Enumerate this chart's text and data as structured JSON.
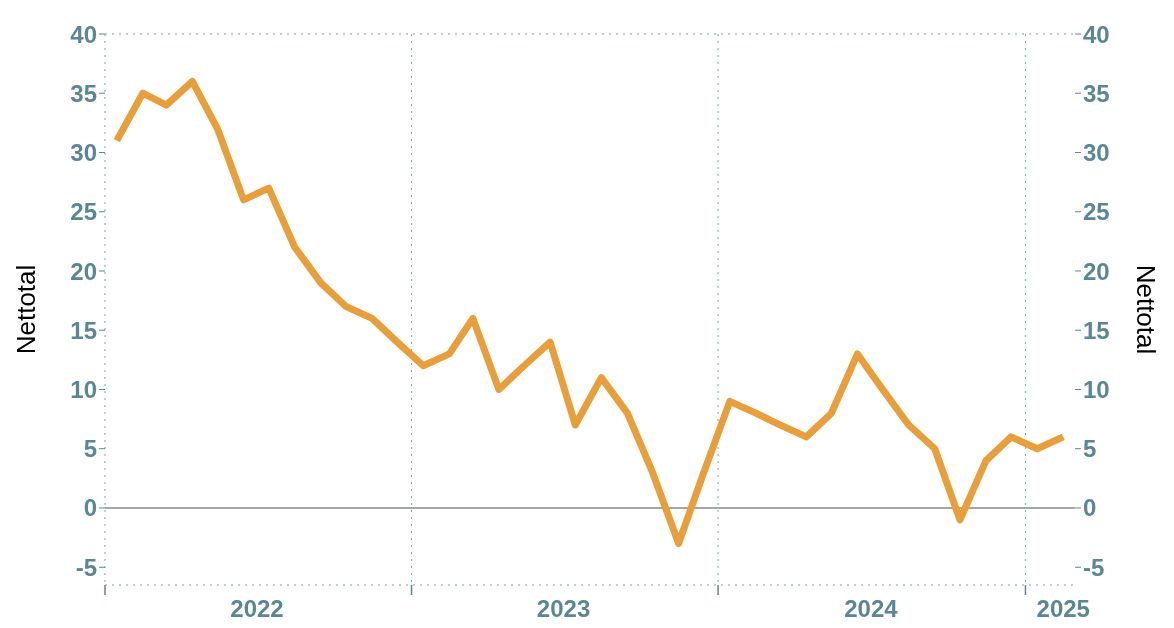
{
  "chart_data": {
    "type": "line",
    "ylabel": "Nettotal",
    "y2label": "Nettotal",
    "x": [
      "2022-01-15",
      "2022-02-15",
      "2022-03-15",
      "2022-04-15",
      "2022-05-15",
      "2022-06-15",
      "2022-07-15",
      "2022-08-15",
      "2022-09-15",
      "2022-10-15",
      "2022-11-15",
      "2022-12-15",
      "2023-01-15",
      "2023-02-15",
      "2023-03-15",
      "2023-04-15",
      "2023-05-15",
      "2023-06-15",
      "2023-07-15",
      "2023-08-15",
      "2023-09-15",
      "2023-10-15",
      "2023-11-15",
      "2023-12-15",
      "2024-01-15",
      "2024-02-15",
      "2024-03-15",
      "2024-04-15",
      "2024-05-15",
      "2024-06-15",
      "2024-07-15",
      "2024-08-15",
      "2024-09-15",
      "2024-10-15",
      "2024-11-15",
      "2024-12-15",
      "2025-01-15",
      "2025-02-15"
    ],
    "series": [
      {
        "color": "#e89e3a",
        "values": [
          31,
          35,
          34,
          36,
          32,
          26,
          27,
          22,
          19,
          17,
          16,
          14,
          12,
          13,
          16,
          10,
          12,
          14,
          7,
          11,
          8,
          3,
          -3,
          3,
          9,
          8,
          7,
          6,
          8,
          13,
          10,
          7,
          5,
          -1,
          4,
          6,
          5,
          6
        ]
      }
    ],
    "xlim": [
      "2022-01-01",
      "2025-03-01"
    ],
    "xticks": [
      {
        "value": "2022-01-01",
        "label": null
      },
      {
        "value": "2022-07-01",
        "label": "2022"
      },
      {
        "value": "2023-01-01",
        "label": null
      },
      {
        "value": "2023-07-01",
        "label": "2023"
      },
      {
        "value": "2024-01-01",
        "label": null
      },
      {
        "value": "2024-07-01",
        "label": "2024"
      },
      {
        "value": "2025-01-01",
        "label": null
      },
      {
        "value": "2025-02-15",
        "label": "2025"
      }
    ],
    "ylim": [
      -6.5,
      40
    ],
    "yticks": [
      -5,
      0,
      5,
      10,
      15,
      20,
      25,
      30,
      35,
      40
    ],
    "y2lim": [
      -6.5,
      40
    ],
    "y2ticks": [
      -5,
      0,
      5,
      10,
      15,
      20,
      25,
      30,
      35,
      40
    ],
    "ref_lines": [
      {
        "axis": "y",
        "value": 0,
        "color": "#888888"
      }
    ],
    "grid": true,
    "legend": false,
    "marker": "none",
    "line_style": "solid"
  }
}
